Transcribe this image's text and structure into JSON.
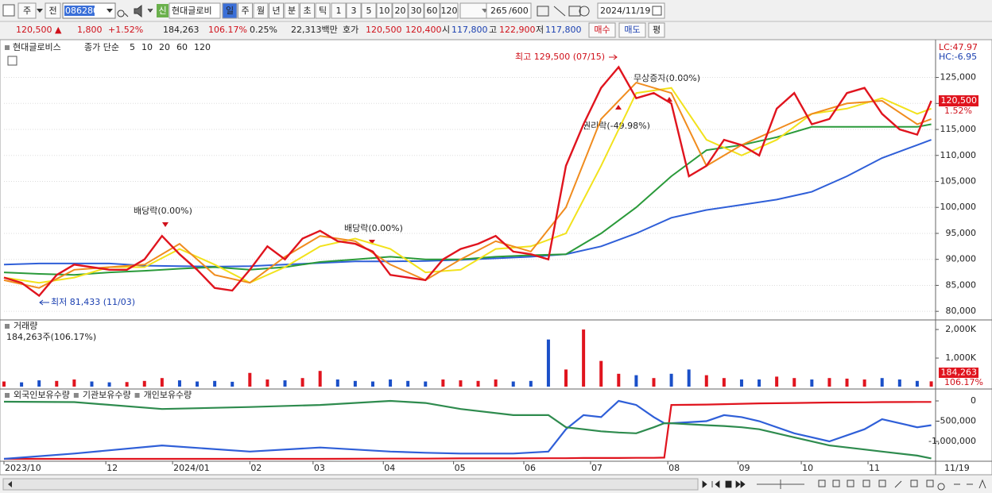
{
  "toolbar": {
    "market": "주",
    "scope": "전",
    "code": "086280",
    "badge": "신",
    "name": "현대글로비",
    "period_buttons": [
      "일",
      "주",
      "월",
      "년",
      "분",
      "초",
      "틱"
    ],
    "intervals": [
      "1",
      "3",
      "5",
      "10",
      "20",
      "30",
      "60",
      "120"
    ],
    "count": "265",
    "max": "/600",
    "date": "2024/11/19"
  },
  "quote": {
    "price": "120,500 ▲",
    "change": "1,800",
    "change_pct": "+1.52%",
    "volume": "184,263",
    "volume_ratio": "106.17%",
    "turnover": "0.25%",
    "amount": "22,313백만",
    "ask_label": "호가",
    "ask": "120,500",
    "bid": "120,400",
    "open_label": "시",
    "open": "117,800",
    "high_label": "고",
    "high": "122,900",
    "low_label": "저",
    "low": "117,800",
    "buy": "매수",
    "sell": "매도",
    "eval": "평"
  },
  "chart_data": [
    {
      "type": "line",
      "title": "현대글로비스",
      "indicator": "종가 단순",
      "grid": true,
      "xlim": [
        0,
        265
      ],
      "ylim": [
        78500,
        131500
      ],
      "yticks": [
        {
          "value": 80000,
          "label": "80,000"
        },
        {
          "value": 85000,
          "label": "85,000"
        },
        {
          "value": 90000,
          "label": "90,000"
        },
        {
          "value": 95000,
          "label": "95,000"
        },
        {
          "value": 100000,
          "label": "100,000"
        },
        {
          "value": 105000,
          "label": "105,000"
        },
        {
          "value": 110000,
          "label": "110,000"
        },
        {
          "value": 115000,
          "label": "115,000"
        },
        {
          "value": 120000,
          "label": "120,000"
        },
        {
          "value": 125000,
          "label": "125,000"
        }
      ],
      "lc_label": "LC:47.97",
      "hc_label": "HC:-6.95",
      "last_value_label": "120,500",
      "last_change_label": "1.52%",
      "annotations": [
        "최고 129,500 (07/15)",
        "최저 81,433 (11/03)",
        "배당락(0.00%)",
        "배당락(0.00%)",
        "무상증자(0.00%)",
        "권리락(-49.98%)"
      ],
      "series": [
        {
          "name": "5",
          "color": "#e0141e",
          "x": [
            0,
            5,
            10,
            15,
            20,
            25,
            30,
            35,
            40,
            45,
            50,
            55,
            60,
            65,
            70,
            75,
            80,
            85,
            90,
            95,
            100,
            105,
            110,
            115,
            120,
            125,
            130,
            135,
            140,
            145,
            150,
            155,
            160,
            165,
            170,
            175,
            180,
            185,
            190,
            195,
            200,
            205,
            210,
            215,
            220,
            225,
            230,
            235,
            240,
            245,
            250,
            255,
            260,
            264
          ],
          "values": [
            86500,
            85500,
            83000,
            87000,
            89000,
            88500,
            88000,
            88000,
            90000,
            94500,
            91000,
            88000,
            84500,
            84000,
            88000,
            92500,
            90000,
            94000,
            95500,
            93500,
            93000,
            91500,
            87000,
            86500,
            86000,
            90000,
            92000,
            93000,
            94500,
            91500,
            91000,
            90000,
            108000,
            116000,
            123000,
            127000,
            121000,
            122000,
            120000,
            106000,
            108000,
            113000,
            112000,
            110000,
            119000,
            122000,
            116000,
            117000,
            122000,
            123000,
            118000,
            115000,
            114000,
            120500
          ]
        },
        {
          "name": "10",
          "color": "#f08c1e",
          "x": [
            0,
            10,
            20,
            30,
            40,
            50,
            60,
            70,
            80,
            90,
            100,
            110,
            120,
            130,
            140,
            150,
            160,
            170,
            180,
            190,
            200,
            210,
            220,
            230,
            240,
            250,
            260,
            264
          ],
          "values": [
            86000,
            84500,
            88000,
            88500,
            89000,
            93000,
            87000,
            85500,
            90500,
            94500,
            93500,
            89000,
            86000,
            90000,
            93500,
            91500,
            100000,
            117000,
            124000,
            122000,
            108000,
            112000,
            115000,
            118000,
            120000,
            120500,
            116000,
            117000
          ]
        },
        {
          "name": "20",
          "color": "#f2e21c",
          "x": [
            0,
            10,
            20,
            30,
            40,
            50,
            60,
            70,
            80,
            90,
            100,
            110,
            120,
            130,
            140,
            150,
            160,
            170,
            180,
            190,
            200,
            210,
            220,
            230,
            240,
            250,
            260,
            264
          ],
          "values": [
            86500,
            85500,
            86500,
            88500,
            88500,
            92000,
            89000,
            85500,
            88500,
            92500,
            94000,
            92000,
            87500,
            88000,
            92000,
            92500,
            95000,
            108000,
            122000,
            123000,
            113000,
            110000,
            113000,
            118000,
            119000,
            121000,
            118000,
            119000
          ]
        },
        {
          "name": "60",
          "color": "#2a9a3a",
          "x": [
            0,
            10,
            20,
            30,
            40,
            50,
            60,
            70,
            80,
            90,
            100,
            110,
            120,
            130,
            140,
            150,
            160,
            170,
            180,
            190,
            200,
            210,
            220,
            230,
            240,
            250,
            260,
            264
          ],
          "values": [
            87500,
            87200,
            87000,
            87500,
            87800,
            88200,
            88500,
            88000,
            88500,
            89500,
            90000,
            90500,
            90000,
            90000,
            90500,
            90800,
            91000,
            95000,
            100000,
            106000,
            111000,
            112000,
            113500,
            115500,
            115500,
            115500,
            115500,
            116000
          ]
        },
        {
          "name": "120",
          "color": "#2f5fd8",
          "x": [
            0,
            10,
            20,
            30,
            40,
            50,
            60,
            70,
            80,
            90,
            100,
            110,
            120,
            130,
            140,
            150,
            160,
            170,
            180,
            190,
            200,
            210,
            220,
            230,
            240,
            250,
            260,
            264
          ],
          "values": [
            89000,
            89200,
            89200,
            89200,
            88800,
            88700,
            88600,
            88700,
            89000,
            89300,
            89600,
            89600,
            89700,
            89900,
            90200,
            90500,
            91000,
            92500,
            95000,
            98000,
            99500,
            100500,
            101500,
            103000,
            106000,
            109500,
            112000,
            113000
          ]
        }
      ]
    },
    {
      "type": "bar",
      "title": "거래량",
      "subtitle": "184,263주(106.17%)",
      "xlim": [
        0,
        265
      ],
      "ylim": [
        0,
        2280000
      ],
      "yticks": [
        {
          "value": 1000000,
          "label": "1,000K"
        },
        {
          "value": 2000000,
          "label": "2,000K"
        }
      ],
      "last_value_label": "184,263",
      "last_change_label": "106.17%",
      "up_color": "#e0141e",
      "down_color": "#1a4fc8",
      "x": [
        0,
        5,
        10,
        15,
        20,
        25,
        30,
        35,
        40,
        45,
        50,
        55,
        60,
        65,
        70,
        75,
        80,
        85,
        90,
        95,
        100,
        105,
        110,
        115,
        120,
        125,
        130,
        135,
        140,
        145,
        150,
        155,
        160,
        165,
        170,
        175,
        180,
        185,
        190,
        195,
        200,
        205,
        210,
        215,
        220,
        225,
        230,
        235,
        240,
        245,
        250,
        255,
        260,
        264
      ],
      "values": [
        180000,
        150000,
        220000,
        200000,
        250000,
        180000,
        150000,
        160000,
        200000,
        300000,
        220000,
        180000,
        200000,
        170000,
        480000,
        250000,
        220000,
        300000,
        550000,
        250000,
        200000,
        180000,
        250000,
        200000,
        180000,
        250000,
        220000,
        200000,
        250000,
        180000,
        200000,
        1650000,
        600000,
        2000000,
        900000,
        450000,
        400000,
        300000,
        450000,
        600000,
        400000,
        300000,
        250000,
        250000,
        350000,
        300000,
        250000,
        300000,
        280000,
        250000,
        300000,
        250000,
        200000,
        184263
      ]
    },
    {
      "type": "line",
      "xlim": [
        0,
        265
      ],
      "ylim": [
        -1470000,
        255000
      ],
      "yticks": [
        0,
        {
          "value": -500000,
          "label": "-500,000"
        },
        {
          "value": -1000000,
          "label": "-1,000,000"
        }
      ],
      "xticks": [
        {
          "value": 0,
          "label": "2023/10"
        },
        {
          "value": 29,
          "label": "12"
        },
        {
          "value": 48,
          "label": "2024/01"
        },
        {
          "value": 70,
          "label": "02"
        },
        {
          "value": 88,
          "label": "03"
        },
        {
          "value": 108,
          "label": "04"
        },
        {
          "value": 128,
          "label": "05"
        },
        {
          "value": 148,
          "label": "06"
        },
        {
          "value": 167,
          "label": "07"
        },
        {
          "value": 189,
          "label": "08"
        },
        {
          "value": 209,
          "label": "09"
        },
        {
          "value": 227,
          "label": "10"
        },
        {
          "value": 246,
          "label": "11"
        }
      ],
      "last_date": "11/19",
      "x": [
        0,
        20,
        45,
        70,
        90,
        110,
        120,
        130,
        145,
        155,
        160,
        165,
        170,
        175,
        180,
        185,
        188,
        190,
        200,
        205,
        210,
        215,
        225,
        235,
        245,
        250,
        260,
        264
      ],
      "series": [
        {
          "name": "외국인보유수량",
          "color": "#e0141e",
          "values": [
            -1430000,
            -1430000,
            -1430000,
            -1430000,
            -1430000,
            -1425000,
            -1425000,
            -1420000,
            -1420000,
            -1415000,
            -1415000,
            -1410000,
            -1410000,
            -1410000,
            -1405000,
            -1405000,
            -1400000,
            -100000,
            -90000,
            -80000,
            -70000,
            -60000,
            -50000,
            -40000,
            -35000,
            -30000,
            -25000,
            -25000
          ]
        },
        {
          "name": "기관보유수량",
          "color": "#2f5fd8",
          "values": [
            -1430000,
            -1300000,
            -1100000,
            -1250000,
            -1150000,
            -1250000,
            -1280000,
            -1300000,
            -1300000,
            -1250000,
            -700000,
            -350000,
            -400000,
            0,
            -100000,
            -400000,
            -550000,
            -550000,
            -500000,
            -350000,
            -400000,
            -500000,
            -800000,
            -1000000,
            -700000,
            -450000,
            -650000,
            -600000
          ]
        },
        {
          "name": "개인보유수량",
          "color": "#2e8b4e",
          "values": [
            -20000,
            -30000,
            -200000,
            -150000,
            -100000,
            0,
            -50000,
            -200000,
            -350000,
            -350000,
            -650000,
            -700000,
            -750000,
            -780000,
            -800000,
            -650000,
            -550000,
            -550000,
            -600000,
            -620000,
            -650000,
            -700000,
            -900000,
            -1100000,
            -1200000,
            -1250000,
            -1350000,
            -1420000
          ]
        }
      ]
    }
  ]
}
